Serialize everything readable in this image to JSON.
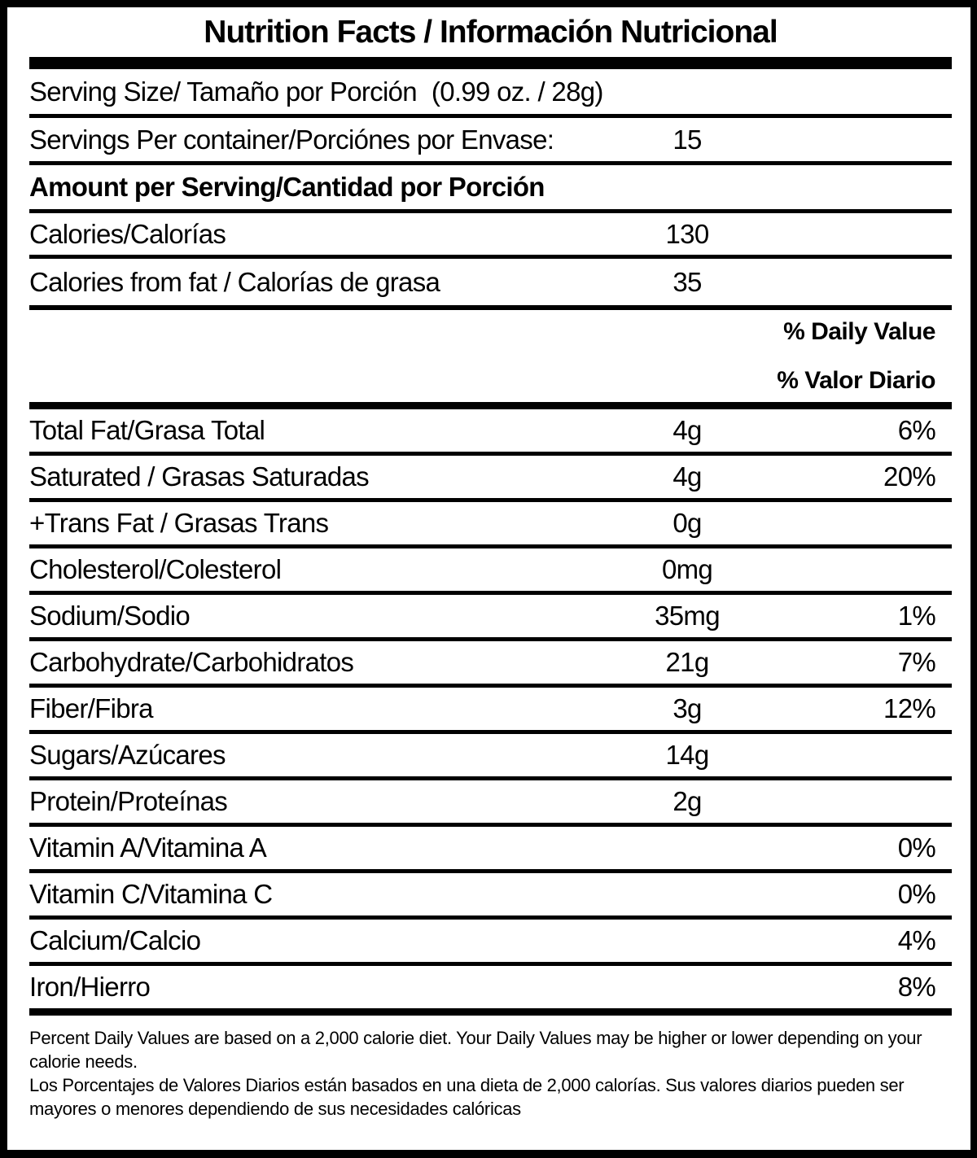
{
  "title": "Nutrition Facts / Información Nutricional",
  "serving": {
    "size_label": "Serving Size/ Tamaño por Porción",
    "size_value": "(0.99 oz. / 28g)",
    "per_container_label": "Servings Per container/Porciónes por Envase:",
    "per_container_value": "15"
  },
  "amount_heading": "Amount per Serving/Cantidad por Porción",
  "calories": {
    "label": "Calories/Calorías",
    "value": "130",
    "from_fat_label": "Calories from fat / Calorías de grasa",
    "from_fat_value": "35"
  },
  "dv_header": {
    "line1": "% Daily Value",
    "line2": "% Valor Diario"
  },
  "nutrients": [
    {
      "label": "Total Fat/Grasa Total",
      "amount": "4g",
      "dv": "6%"
    },
    {
      "label": "Saturated / Grasas Saturadas",
      "amount": "4g",
      "dv": "20%"
    },
    {
      "label": "+Trans Fat / Grasas Trans",
      "amount": "0g",
      "dv": ""
    },
    {
      "label": "Cholesterol/Colesterol",
      "amount": "0mg",
      "dv": ""
    },
    {
      "label": "Sodium/Sodio",
      "amount": "35mg",
      "dv": "1%"
    },
    {
      "label": "Carbohydrate/Carbohidratos",
      "amount": "21g",
      "dv": "7%"
    },
    {
      "label": "Fiber/Fibra",
      "amount": "3g",
      "dv": "12%"
    },
    {
      "label": "Sugars/Azúcares",
      "amount": "14g",
      "dv": ""
    },
    {
      "label": "Protein/Proteínas",
      "amount": "2g",
      "dv": ""
    },
    {
      "label": "Vitamin A/Vitamina A",
      "amount": "",
      "dv": "0%"
    },
    {
      "label": "Vitamin C/Vitamina C",
      "amount": "",
      "dv": "0%"
    },
    {
      "label": "Calcium/Calcio",
      "amount": "",
      "dv": "4%"
    },
    {
      "label": "Iron/Hierro",
      "amount": "",
      "dv": "8%"
    }
  ],
  "footnote": {
    "en": "Percent Daily Values are based on a 2,000 calorie diet. Your Daily Values may be higher or lower depending on your calorie needs.",
    "es": "Los Porcentajes de Valores Diarios están basados en una dieta de 2,000 calorías. Sus valores diarios pueden ser mayores o menores dependiendo de sus necesidades calóricas"
  },
  "colors": {
    "ink": "#000000",
    "paper": "#ffffff"
  }
}
